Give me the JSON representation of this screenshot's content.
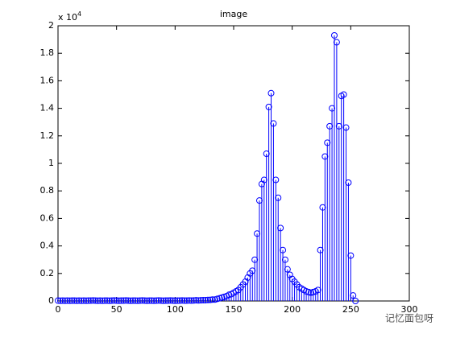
{
  "chart_data": {
    "type": "stem",
    "title": "image",
    "y_multiplier": {
      "base": "x 10",
      "exponent": "4"
    },
    "watermark": "记忆面包呀",
    "color": "#0000ff",
    "xlim": [
      0,
      300
    ],
    "xticks": [
      0,
      50,
      100,
      150,
      200,
      250,
      300
    ],
    "ylim": [
      0,
      2
    ],
    "yticks": [
      0,
      0.2,
      0.4,
      0.6,
      0.8,
      1,
      1.2,
      1.4,
      1.6,
      1.8,
      2
    ],
    "x": [
      0,
      2,
      4,
      6,
      8,
      10,
      12,
      14,
      16,
      18,
      20,
      22,
      24,
      26,
      28,
      30,
      32,
      34,
      36,
      38,
      40,
      42,
      44,
      46,
      48,
      50,
      52,
      54,
      56,
      58,
      60,
      62,
      64,
      66,
      68,
      70,
      72,
      74,
      76,
      78,
      80,
      82,
      84,
      86,
      88,
      90,
      92,
      94,
      96,
      98,
      100,
      102,
      104,
      106,
      108,
      110,
      112,
      114,
      116,
      118,
      120,
      122,
      124,
      126,
      128,
      130,
      132,
      134,
      136,
      138,
      140,
      142,
      144,
      146,
      148,
      150,
      152,
      154,
      156,
      158,
      160,
      162,
      164,
      166,
      168,
      170,
      172,
      174,
      176,
      178,
      180,
      182,
      184,
      186,
      188,
      190,
      192,
      194,
      196,
      198,
      200,
      202,
      204,
      206,
      208,
      210,
      212,
      214,
      216,
      218,
      220,
      222,
      224,
      226,
      228,
      230,
      232,
      234,
      236,
      238,
      240,
      242,
      244,
      246,
      248,
      250,
      252,
      254
    ],
    "values": [
      0.003,
      0.002,
      0.003,
      0.002,
      0.003,
      0.002,
      0.003,
      0.003,
      0.002,
      0.003,
      0.002,
      0.003,
      0.002,
      0.003,
      0.003,
      0.004,
      0.003,
      0.002,
      0.003,
      0.002,
      0.003,
      0.003,
      0.002,
      0.003,
      0.004,
      0.003,
      0.002,
      0.003,
      0.003,
      0.004,
      0.003,
      0.002,
      0.003,
      0.003,
      0.002,
      0.003,
      0.004,
      0.003,
      0.002,
      0.003,
      0.003,
      0.002,
      0.003,
      0.004,
      0.003,
      0.002,
      0.003,
      0.003,
      0.004,
      0.003,
      0.002,
      0.003,
      0.003,
      0.004,
      0.003,
      0.003,
      0.004,
      0.003,
      0.004,
      0.005,
      0.004,
      0.005,
      0.006,
      0.006,
      0.007,
      0.008,
      0.01,
      0.01,
      0.015,
      0.02,
      0.025,
      0.03,
      0.035,
      0.045,
      0.05,
      0.06,
      0.07,
      0.08,
      0.1,
      0.12,
      0.14,
      0.17,
      0.2,
      0.22,
      0.3,
      0.49,
      0.73,
      0.85,
      0.88,
      1.07,
      1.41,
      1.51,
      1.29,
      0.88,
      0.75,
      0.53,
      0.37,
      0.3,
      0.23,
      0.19,
      0.16,
      0.14,
      0.12,
      0.1,
      0.09,
      0.08,
      0.07,
      0.065,
      0.06,
      0.065,
      0.07,
      0.08,
      0.37,
      0.68,
      1.05,
      1.15,
      1.27,
      1.4,
      1.93,
      1.88,
      1.27,
      1.49,
      1.5,
      1.26,
      0.86,
      0.33,
      0.04,
      0
    ]
  }
}
